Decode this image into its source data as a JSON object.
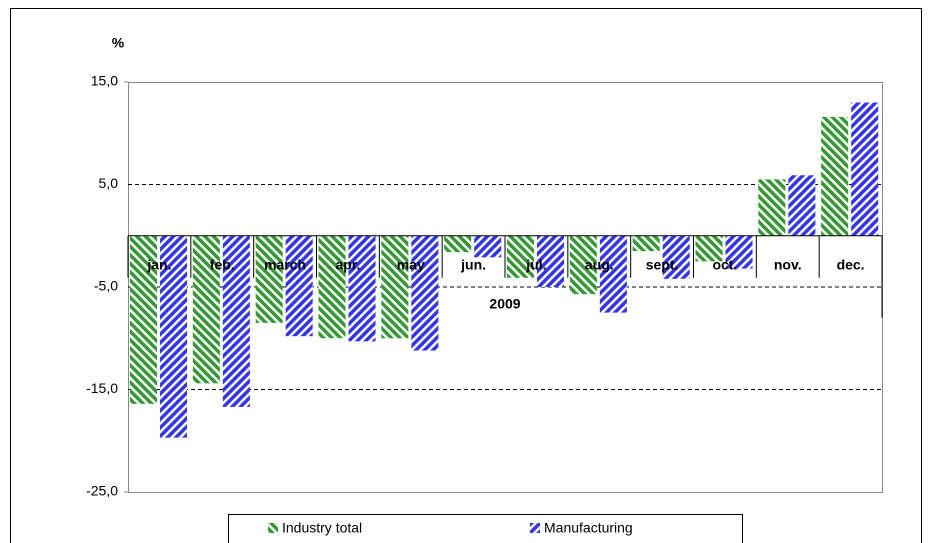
{
  "chart_data": {
    "type": "bar",
    "y_label": "%",
    "x_label": "2009",
    "categories": [
      "jan.",
      "feb.",
      "march",
      "apr.",
      "may",
      "jun.",
      "jul.",
      "aug.",
      "sept.",
      "oct.",
      "nov.",
      "dec."
    ],
    "series": [
      {
        "name": "Industry total",
        "color": "#339933",
        "values": [
          -16.4,
          -14.4,
          -8.5,
          -10.0,
          -10.0,
          -1.6,
          -4.1,
          -5.7,
          -1.5,
          -2.5,
          5.5,
          11.6
        ]
      },
      {
        "name": "Manufacturing",
        "color": "#3333ff",
        "values": [
          -19.7,
          -16.7,
          -9.8,
          -10.3,
          -11.2,
          -2.1,
          -5.0,
          -7.5,
          -4.2,
          -3.2,
          5.9,
          13.0
        ]
      }
    ],
    "ylim": [
      -25,
      15
    ],
    "yticks": [
      {
        "value": -25,
        "label": "-25,0"
      },
      {
        "value": -15,
        "label": "-15,0"
      },
      {
        "value": -5,
        "label": "-5,0"
      },
      {
        "value": 5,
        "label": "5,0"
      },
      {
        "value": 15,
        "label": "15,0"
      }
    ],
    "grid": true,
    "legend": "bottom"
  }
}
